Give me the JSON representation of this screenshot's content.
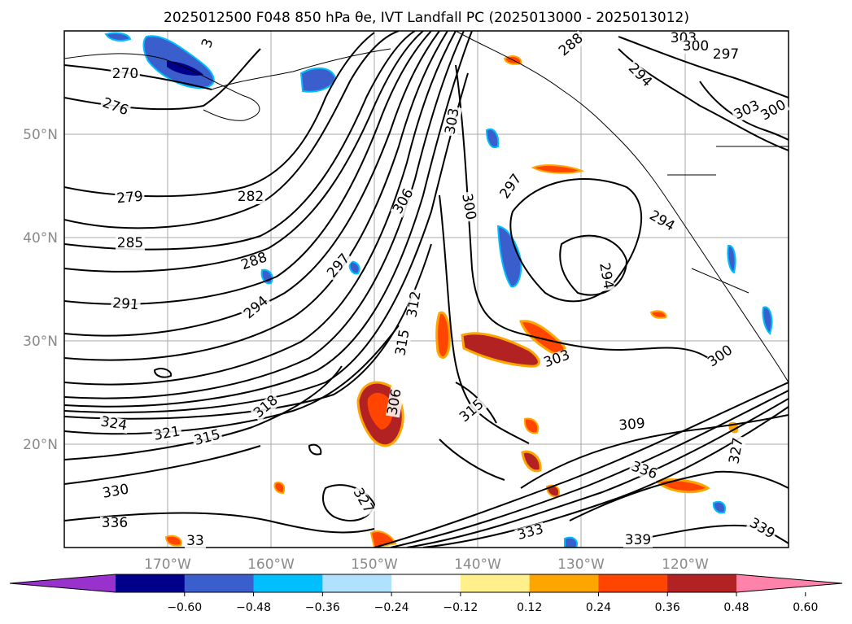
{
  "title": "2025012500 F048 850 hPa θe, IVT Landfall PC (2025013000 - 2025013012)",
  "axes": {
    "lat_labels": [
      "50°N",
      "40°N",
      "30°N",
      "20°N"
    ],
    "lon_labels": [
      "170°W",
      "160°W",
      "150°W",
      "140°W",
      "130°W",
      "120°W"
    ]
  },
  "contour_labels": [
    {
      "text": "270"
    },
    {
      "text": "276"
    },
    {
      "text": "279"
    },
    {
      "text": "282"
    },
    {
      "text": "285"
    },
    {
      "text": "288"
    },
    {
      "text": "291"
    },
    {
      "text": "294"
    },
    {
      "text": "297"
    },
    {
      "text": "303"
    },
    {
      "text": "306"
    },
    {
      "text": "300"
    },
    {
      "text": "297"
    },
    {
      "text": "294"
    },
    {
      "text": "294"
    },
    {
      "text": "312"
    },
    {
      "text": "315"
    },
    {
      "text": "318"
    },
    {
      "text": "315"
    },
    {
      "text": "324"
    },
    {
      "text": "321"
    },
    {
      "text": "315"
    },
    {
      "text": "306"
    },
    {
      "text": "303"
    },
    {
      "text": "300"
    },
    {
      "text": "309"
    },
    {
      "text": "327"
    },
    {
      "text": "330"
    },
    {
      "text": "336"
    },
    {
      "text": "327"
    },
    {
      "text": "336"
    },
    {
      "text": "339"
    },
    {
      "text": "339"
    },
    {
      "text": "333"
    },
    {
      "text": "33"
    },
    {
      "text": "303"
    },
    {
      "text": "300"
    },
    {
      "text": "297"
    },
    {
      "text": "288"
    },
    {
      "text": "303"
    },
    {
      "text": "300"
    },
    {
      "text": "294"
    },
    {
      "text": "3"
    }
  ],
  "colorbar": {
    "colors": [
      "#9932cc",
      "#00008b",
      "#3a5fcd",
      "#00bfff",
      "#b0e2ff",
      "#ffffff",
      "#fff08c",
      "#ffa500",
      "#ff4500",
      "#b22222",
      "#ff82ab"
    ],
    "ticks": [
      "−0.60",
      "−0.48",
      "−0.36",
      "−0.24",
      "−0.12",
      "0.12",
      "0.24",
      "0.36",
      "0.48",
      "0.60"
    ]
  }
}
